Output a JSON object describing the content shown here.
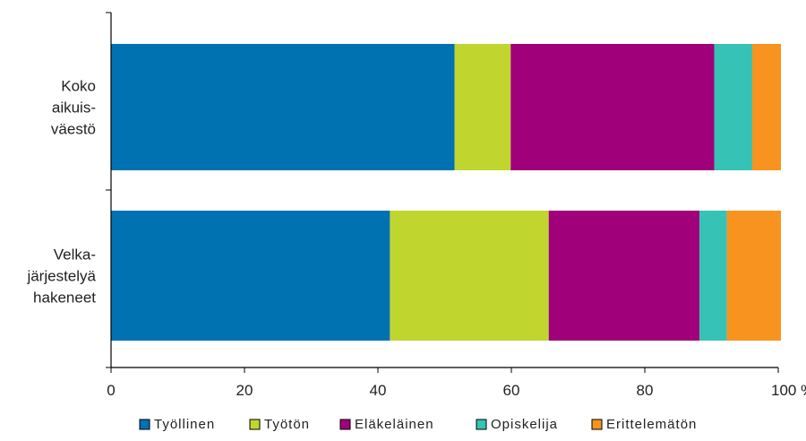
{
  "chart_data": {
    "type": "bar",
    "orientation": "horizontal",
    "stacked": true,
    "categories": [
      "Koko aikuis- väestö",
      "Velka- järjestelyä hakeneet"
    ],
    "category_lines": [
      [
        "Koko",
        "aikuis-",
        "väestö"
      ],
      [
        "Velka-",
        "järjestelyä",
        "hakeneet"
      ]
    ],
    "series": [
      {
        "name": "Työllinen",
        "color": "#0072b2",
        "values": [
          51.5,
          41.8
        ]
      },
      {
        "name": "Työtön",
        "color": "#c0d62f",
        "values": [
          8.4,
          23.8
        ]
      },
      {
        "name": "Eläkeläinen",
        "color": "#a0007a",
        "values": [
          30.5,
          22.6
        ]
      },
      {
        "name": "Opiskelija",
        "color": "#36c2b4",
        "values": [
          5.7,
          4.1
        ]
      },
      {
        "name": "Erittelemätön",
        "color": "#f7931e",
        "values": [
          4.3,
          8.1
        ]
      }
    ],
    "title": "",
    "xlabel": "",
    "ylabel": "",
    "xlim": [
      0,
      100
    ],
    "x_ticks": [
      "0",
      "20",
      "40",
      "60",
      "80",
      "100 %"
    ],
    "x_tick_values": [
      0,
      20,
      40,
      60,
      80,
      100
    ],
    "grid": false,
    "legend_position": "bottom"
  }
}
